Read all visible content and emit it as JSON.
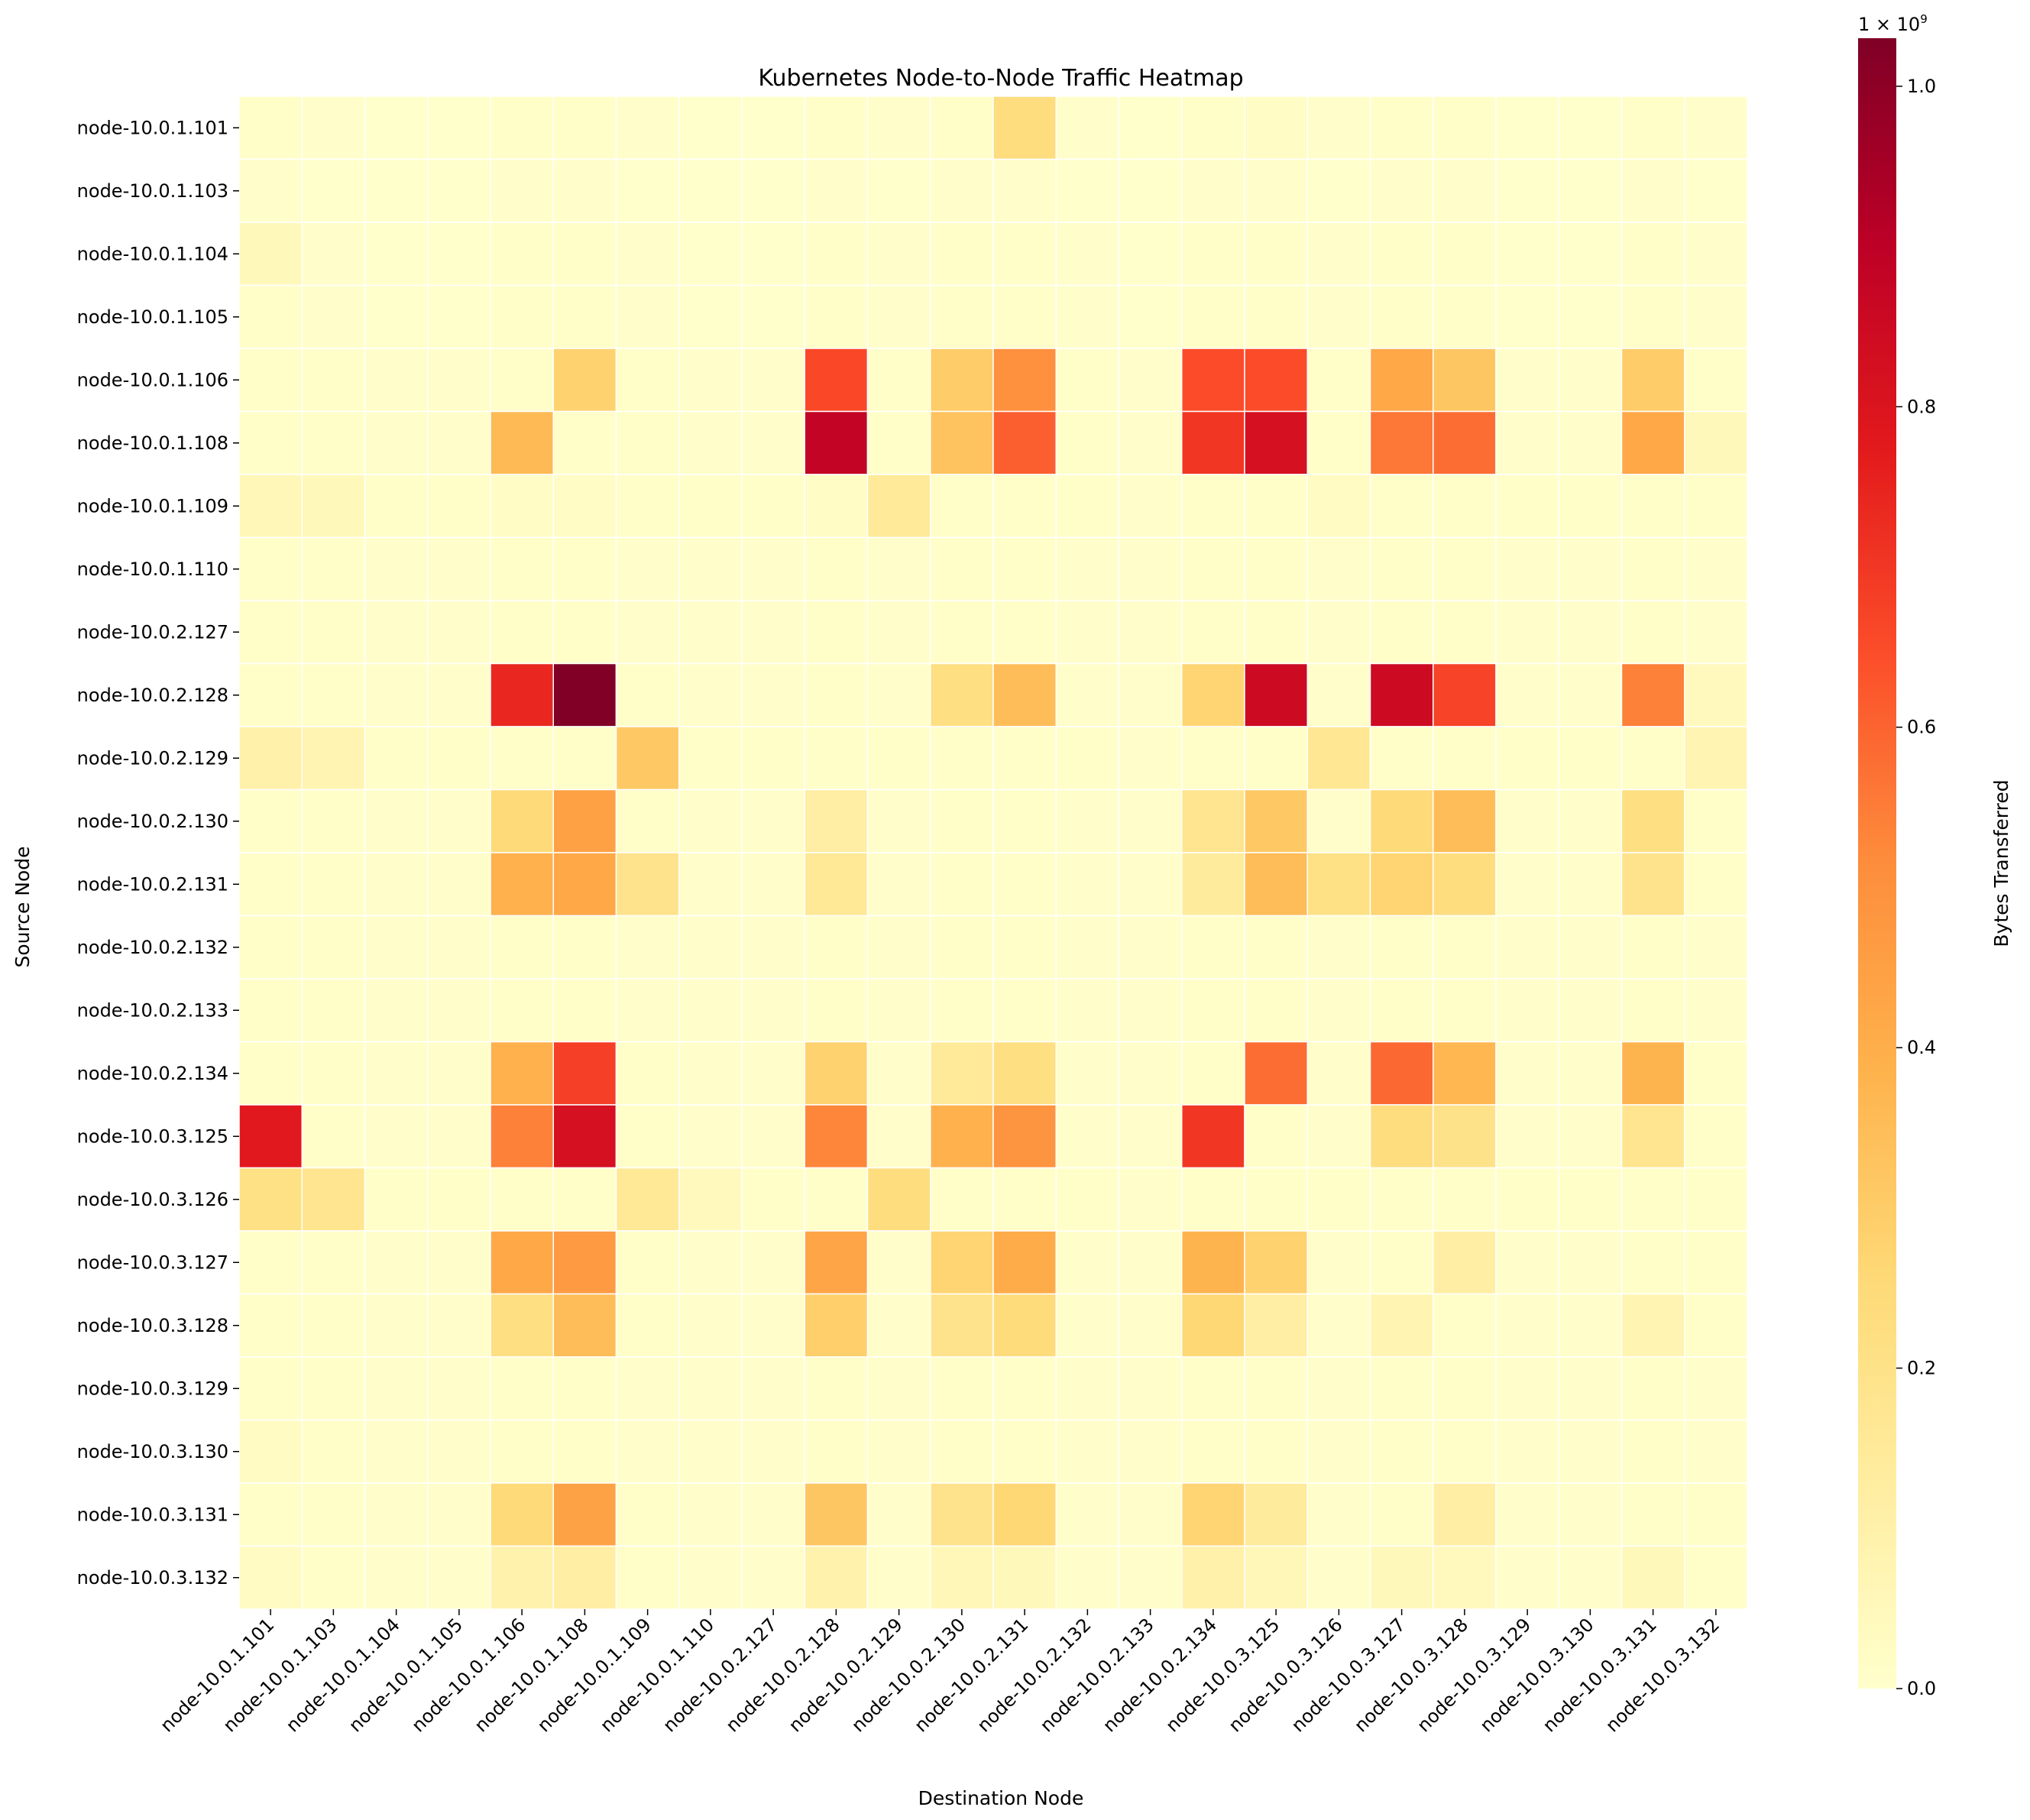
{
  "chart_data": {
    "type": "heatmap",
    "title": "Kubernetes Node-to-Node Traffic Heatmap",
    "xlabel": "Destination Node",
    "ylabel": "Source Node",
    "x_categories": [
      "node-10.0.1.101",
      "node-10.0.1.103",
      "node-10.0.1.104",
      "node-10.0.1.105",
      "node-10.0.1.106",
      "node-10.0.1.108",
      "node-10.0.1.109",
      "node-10.0.1.110",
      "node-10.0.2.127",
      "node-10.0.2.128",
      "node-10.0.2.129",
      "node-10.0.2.130",
      "node-10.0.2.131",
      "node-10.0.2.132",
      "node-10.0.2.133",
      "node-10.0.2.134",
      "node-10.0.3.125",
      "node-10.0.3.126",
      "node-10.0.3.127",
      "node-10.0.3.128",
      "node-10.0.3.129",
      "node-10.0.3.130",
      "node-10.0.3.131",
      "node-10.0.3.132"
    ],
    "y_categories": [
      "node-10.0.1.101",
      "node-10.0.1.103",
      "node-10.0.1.104",
      "node-10.0.1.105",
      "node-10.0.1.106",
      "node-10.0.1.108",
      "node-10.0.1.109",
      "node-10.0.1.110",
      "node-10.0.2.127",
      "node-10.0.2.128",
      "node-10.0.2.129",
      "node-10.0.2.130",
      "node-10.0.2.131",
      "node-10.0.2.132",
      "node-10.0.2.133",
      "node-10.0.2.134",
      "node-10.0.3.125",
      "node-10.0.3.126",
      "node-10.0.3.127",
      "node-10.0.3.128",
      "node-10.0.3.129",
      "node-10.0.3.130",
      "node-10.0.3.131",
      "node-10.0.3.132"
    ],
    "values_unit_note": "values in units of 1e9 bytes",
    "values": [
      [
        0.01,
        0.005,
        0.003,
        0.003,
        0.01,
        0.01,
        0.004,
        0.003,
        0.003,
        0.01,
        0.004,
        0.01,
        0.23,
        0.004,
        0.003,
        0.01,
        0.02,
        0.005,
        0.01,
        0.01,
        0.003,
        0.003,
        0.01,
        0.004
      ],
      [
        0.005,
        0.003,
        0.002,
        0.002,
        0.005,
        0.005,
        0.003,
        0.002,
        0.002,
        0.005,
        0.003,
        0.005,
        0.005,
        0.003,
        0.002,
        0.005,
        0.005,
        0.003,
        0.005,
        0.005,
        0.002,
        0.002,
        0.005,
        0.003
      ],
      [
        0.05,
        0.005,
        0.003,
        0.003,
        0.01,
        0.01,
        0.004,
        0.003,
        0.003,
        0.01,
        0.004,
        0.01,
        0.01,
        0.004,
        0.003,
        0.01,
        0.01,
        0.005,
        0.01,
        0.01,
        0.003,
        0.003,
        0.01,
        0.004
      ],
      [
        0.01,
        0.005,
        0.003,
        0.003,
        0.01,
        0.01,
        0.004,
        0.003,
        0.003,
        0.01,
        0.004,
        0.01,
        0.01,
        0.004,
        0.003,
        0.01,
        0.01,
        0.005,
        0.01,
        0.01,
        0.003,
        0.003,
        0.01,
        0.004
      ],
      [
        0.01,
        0.01,
        0.005,
        0.005,
        0.01,
        0.28,
        0.01,
        0.005,
        0.005,
        0.66,
        0.01,
        0.3,
        0.5,
        0.01,
        0.005,
        0.65,
        0.65,
        0.01,
        0.42,
        0.32,
        0.005,
        0.005,
        0.3,
        0.01
      ],
      [
        0.01,
        0.01,
        0.005,
        0.005,
        0.36,
        0.01,
        0.01,
        0.005,
        0.005,
        0.88,
        0.01,
        0.33,
        0.61,
        0.01,
        0.005,
        0.7,
        0.82,
        0.01,
        0.56,
        0.58,
        0.005,
        0.005,
        0.42,
        0.05
      ],
      [
        0.06,
        0.05,
        0.01,
        0.01,
        0.02,
        0.02,
        0.01,
        0.01,
        0.01,
        0.02,
        0.15,
        0.01,
        0.01,
        0.01,
        0.005,
        0.01,
        0.01,
        0.03,
        0.01,
        0.01,
        0.01,
        0.01,
        0.01,
        0.01
      ],
      [
        0.01,
        0.01,
        0.005,
        0.005,
        0.01,
        0.01,
        0.005,
        0.005,
        0.005,
        0.01,
        0.005,
        0.01,
        0.01,
        0.005,
        0.005,
        0.01,
        0.01,
        0.005,
        0.01,
        0.01,
        0.005,
        0.005,
        0.01,
        0.005
      ],
      [
        0.01,
        0.01,
        0.005,
        0.005,
        0.01,
        0.01,
        0.005,
        0.005,
        0.005,
        0.01,
        0.005,
        0.01,
        0.01,
        0.005,
        0.005,
        0.01,
        0.01,
        0.005,
        0.01,
        0.01,
        0.005,
        0.005,
        0.01,
        0.005
      ],
      [
        0.01,
        0.01,
        0.005,
        0.005,
        0.74,
        1.03,
        0.01,
        0.005,
        0.005,
        0.01,
        0.005,
        0.22,
        0.35,
        0.005,
        0.005,
        0.27,
        0.85,
        0.005,
        0.85,
        0.67,
        0.005,
        0.005,
        0.54,
        0.04
      ],
      [
        0.1,
        0.08,
        0.01,
        0.01,
        0.01,
        0.01,
        0.31,
        0.01,
        0.01,
        0.01,
        0.01,
        0.01,
        0.01,
        0.01,
        0.005,
        0.01,
        0.01,
        0.17,
        0.01,
        0.01,
        0.01,
        0.01,
        0.01,
        0.08
      ],
      [
        0.01,
        0.01,
        0.005,
        0.005,
        0.25,
        0.45,
        0.01,
        0.005,
        0.005,
        0.12,
        0.005,
        0.01,
        0.01,
        0.005,
        0.005,
        0.18,
        0.31,
        0.005,
        0.25,
        0.35,
        0.005,
        0.005,
        0.22,
        0.01
      ],
      [
        0.01,
        0.01,
        0.005,
        0.005,
        0.39,
        0.42,
        0.19,
        0.005,
        0.005,
        0.16,
        0.005,
        0.01,
        0.01,
        0.005,
        0.005,
        0.14,
        0.35,
        0.21,
        0.27,
        0.23,
        0.005,
        0.005,
        0.19,
        0.01
      ],
      [
        0.01,
        0.01,
        0.005,
        0.005,
        0.01,
        0.01,
        0.005,
        0.005,
        0.005,
        0.01,
        0.005,
        0.01,
        0.01,
        0.005,
        0.005,
        0.01,
        0.01,
        0.005,
        0.01,
        0.01,
        0.005,
        0.005,
        0.01,
        0.005
      ],
      [
        0.01,
        0.01,
        0.005,
        0.005,
        0.01,
        0.01,
        0.005,
        0.005,
        0.005,
        0.01,
        0.005,
        0.01,
        0.01,
        0.005,
        0.005,
        0.01,
        0.01,
        0.005,
        0.01,
        0.01,
        0.005,
        0.005,
        0.01,
        0.005
      ],
      [
        0.01,
        0.01,
        0.005,
        0.005,
        0.39,
        0.68,
        0.01,
        0.005,
        0.005,
        0.28,
        0.005,
        0.15,
        0.22,
        0.005,
        0.005,
        0.01,
        0.58,
        0.005,
        0.59,
        0.37,
        0.005,
        0.005,
        0.38,
        0.01
      ],
      [
        0.78,
        0.01,
        0.005,
        0.005,
        0.54,
        0.82,
        0.01,
        0.005,
        0.005,
        0.53,
        0.005,
        0.39,
        0.49,
        0.005,
        0.005,
        0.7,
        0.01,
        0.005,
        0.23,
        0.2,
        0.005,
        0.005,
        0.18,
        0.01
      ],
      [
        0.21,
        0.18,
        0.01,
        0.01,
        0.01,
        0.01,
        0.16,
        0.04,
        0.01,
        0.01,
        0.23,
        0.01,
        0.01,
        0.01,
        0.005,
        0.01,
        0.01,
        0.01,
        0.01,
        0.01,
        0.01,
        0.01,
        0.01,
        0.01
      ],
      [
        0.01,
        0.01,
        0.005,
        0.005,
        0.42,
        0.47,
        0.01,
        0.005,
        0.005,
        0.43,
        0.005,
        0.27,
        0.41,
        0.005,
        0.005,
        0.38,
        0.28,
        0.005,
        0.01,
        0.12,
        0.005,
        0.005,
        0.01,
        0.01
      ],
      [
        0.01,
        0.01,
        0.005,
        0.005,
        0.22,
        0.35,
        0.01,
        0.005,
        0.005,
        0.29,
        0.005,
        0.19,
        0.24,
        0.005,
        0.005,
        0.26,
        0.12,
        0.005,
        0.08,
        0.01,
        0.005,
        0.005,
        0.08,
        0.01
      ],
      [
        0.01,
        0.01,
        0.005,
        0.005,
        0.01,
        0.01,
        0.005,
        0.005,
        0.005,
        0.01,
        0.005,
        0.01,
        0.01,
        0.005,
        0.005,
        0.01,
        0.01,
        0.005,
        0.01,
        0.01,
        0.005,
        0.005,
        0.01,
        0.005
      ],
      [
        0.03,
        0.01,
        0.005,
        0.005,
        0.01,
        0.01,
        0.005,
        0.005,
        0.005,
        0.01,
        0.005,
        0.01,
        0.01,
        0.005,
        0.005,
        0.01,
        0.01,
        0.005,
        0.01,
        0.01,
        0.005,
        0.005,
        0.01,
        0.005
      ],
      [
        0.01,
        0.01,
        0.005,
        0.005,
        0.25,
        0.44,
        0.01,
        0.005,
        0.005,
        0.32,
        0.005,
        0.19,
        0.26,
        0.005,
        0.005,
        0.27,
        0.14,
        0.005,
        0.01,
        0.12,
        0.005,
        0.005,
        0.01,
        0.01
      ],
      [
        0.03,
        0.01,
        0.005,
        0.005,
        0.09,
        0.12,
        0.01,
        0.005,
        0.005,
        0.09,
        0.005,
        0.06,
        0.05,
        0.005,
        0.005,
        0.1,
        0.06,
        0.005,
        0.05,
        0.04,
        0.005,
        0.005,
        0.05,
        0.01
      ]
    ],
    "colorbar": {
      "label": "Bytes Transferred",
      "range": [
        0.0,
        1.03
      ],
      "ticks": [
        0.0,
        0.2,
        0.4,
        0.6,
        0.8,
        1.0
      ],
      "tick_labels": [
        "0.0",
        "0.2",
        "0.4",
        "0.6",
        "0.8",
        "1.0"
      ],
      "offset_text": "1 × 10",
      "offset_exponent": "9",
      "colormap": "YlOrRd",
      "colormap_stops": [
        "#ffffcc",
        "#ffeda0",
        "#fed976",
        "#feb24c",
        "#fd8d3c",
        "#fc4e2a",
        "#e31a1c",
        "#bd0026",
        "#800026"
      ]
    },
    "grid": false
  }
}
